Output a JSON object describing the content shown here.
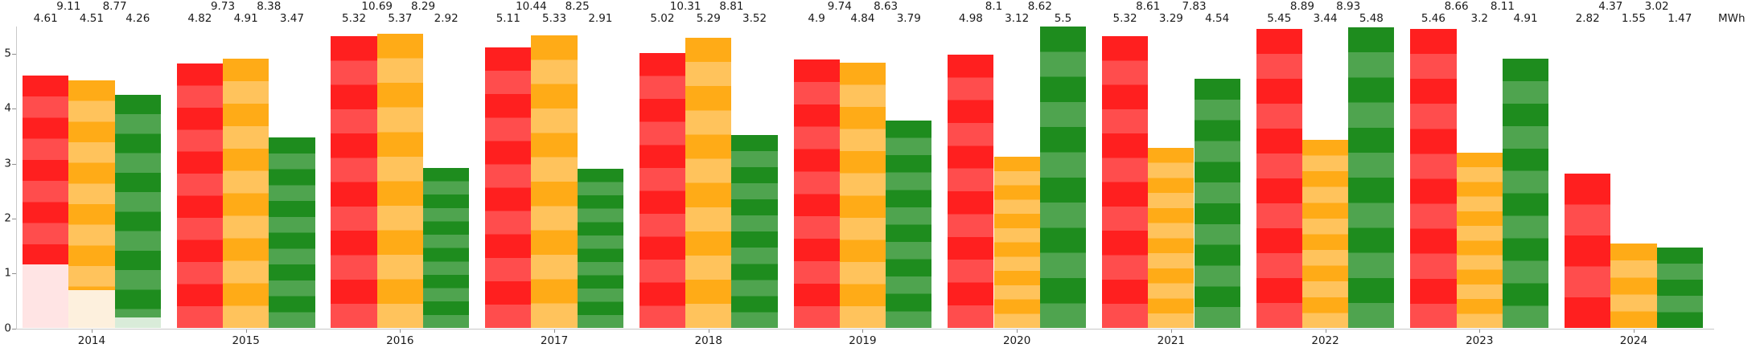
{
  "unit_label": "MWh",
  "colors": {
    "red_dark": "#ff1f1f",
    "red_light": "#ff4d4d",
    "red_pale": "#ffe4e4",
    "orange_dark": "#ffab17",
    "orange_light": "#ffc35c",
    "orange_pale": "#fdf0dd",
    "green_dark": "#1e8c1e",
    "green_light": "#4fa44f",
    "green_pale": "#d9ecd9",
    "axis_line": "#c9c9c9",
    "tick_mark": "#8f8f8f",
    "text": "#1a1a1a"
  },
  "chart_data": {
    "type": "bar",
    "title": "",
    "xlabel": "",
    "ylabel": "MWh",
    "categories": [
      "2014",
      "2015",
      "2016",
      "2017",
      "2018",
      "2019",
      "2020",
      "2021",
      "2022",
      "2023",
      "2024"
    ],
    "series": [
      {
        "name": "red-series",
        "color_key": "red",
        "values": [
          4.61,
          4.82,
          5.32,
          5.11,
          5.02,
          4.9,
          4.98,
          5.32,
          5.45,
          5.46,
          2.82
        ]
      },
      {
        "name": "orange-series",
        "color_key": "orange",
        "values": [
          4.51,
          4.91,
          5.37,
          5.33,
          5.29,
          4.84,
          3.12,
          3.29,
          3.44,
          3.2,
          1.55
        ]
      },
      {
        "name": "green-series",
        "color_key": "green",
        "values": [
          4.26,
          3.47,
          2.92,
          2.91,
          3.52,
          3.79,
          5.5,
          4.54,
          5.48,
          4.91,
          1.47
        ]
      }
    ],
    "pair_sums": [
      [
        9.11,
        8.77
      ],
      [
        9.73,
        8.38
      ],
      [
        10.69,
        8.29
      ],
      [
        10.44,
        8.25
      ],
      [
        10.31,
        8.81
      ],
      [
        9.74,
        8.63
      ],
      [
        8.1,
        8.62
      ],
      [
        8.61,
        7.83
      ],
      [
        8.89,
        8.93
      ],
      [
        8.66,
        8.11
      ],
      [
        4.37,
        3.02
      ]
    ],
    "yticks": [
      0,
      1,
      2,
      3,
      4,
      5
    ],
    "ylim": [
      0,
      5.6
    ],
    "grid": false,
    "legend": "none",
    "stripe_segments": [
      12,
      12,
      12,
      12,
      12,
      12,
      12,
      12,
      12,
      12,
      5
    ],
    "pale_bottom_2014": [
      1.17,
      0.7,
      0.2
    ]
  }
}
